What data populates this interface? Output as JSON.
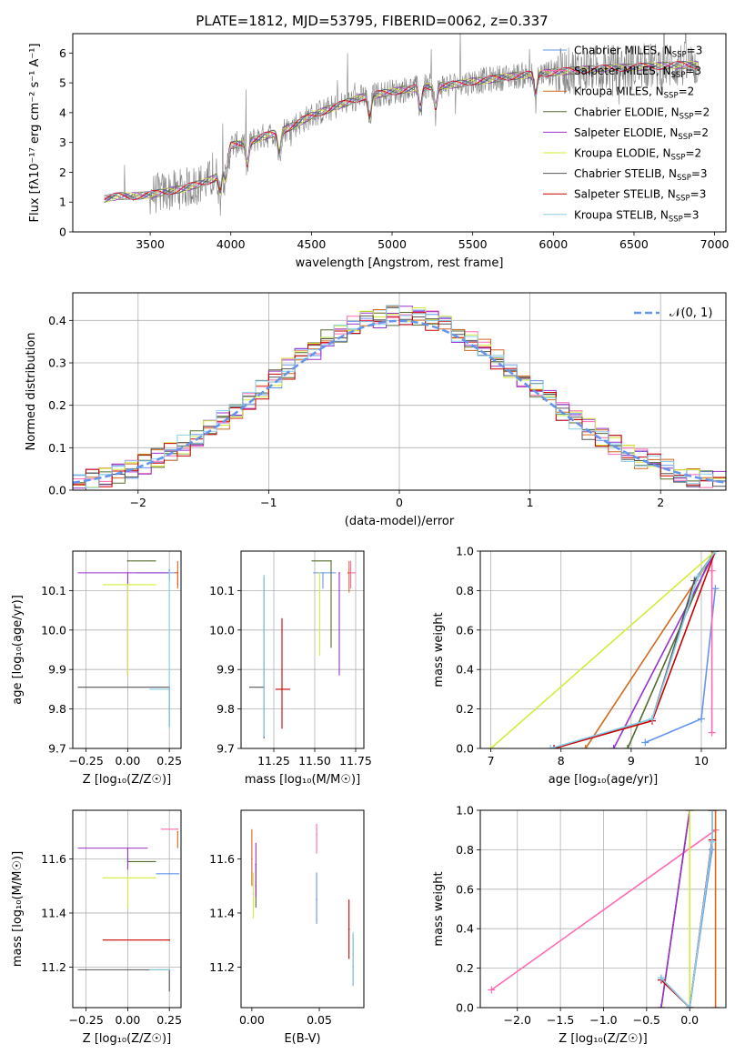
{
  "chart_data": [
    {
      "id": "spectrum",
      "type": "line",
      "title": "PLATE=1812, MJD=53795, FIBERID=0062, z=0.337",
      "xlabel": "wavelength [Angstrom, rest frame]",
      "ylabel": "Flux [fλ10⁻¹⁷ erg cm⁻² s⁻¹ A⁻¹]",
      "xlim": [
        3020,
        7070
      ],
      "ylim": [
        0,
        6.65
      ],
      "xticks": [
        3500,
        4000,
        4500,
        5000,
        5500,
        6000,
        6500,
        7000
      ],
      "yticks": [
        0,
        1,
        2,
        3,
        4,
        5,
        6
      ],
      "grid": false,
      "legend_position": "top-right",
      "continuum": {
        "x": [
          3210,
          3300,
          3400,
          3500,
          3600,
          3700,
          3800,
          3900,
          3950,
          4000,
          4100,
          4200,
          4300,
          4400,
          4500,
          4600,
          4700,
          4800,
          4900,
          5000,
          5100,
          5200,
          5300,
          5400,
          5500,
          5600,
          5700,
          5800,
          5900,
          6000,
          6200,
          6400,
          6600,
          6800
        ],
        "y": [
          1.1,
          1.2,
          1.2,
          1.25,
          1.35,
          1.45,
          1.6,
          1.8,
          2.2,
          2.9,
          3.0,
          3.2,
          3.35,
          3.6,
          3.9,
          4.1,
          4.3,
          4.5,
          4.6,
          4.7,
          4.8,
          4.85,
          4.9,
          4.95,
          5.05,
          5.1,
          5.2,
          5.25,
          5.3,
          5.35,
          5.45,
          5.5,
          5.55,
          5.6
        ]
      },
      "series": [
        {
          "name": "Chabrier MILES, N_SSP=3",
          "label": "Chabrier MILES, N",
          "sub": "SSP",
          "suffix": "=3",
          "color": "#6495ed"
        },
        {
          "name": "Salpeter MILES, N_SSP=3",
          "label": "Salpeter MILES, N",
          "sub": "SSP",
          "suffix": "=3",
          "color": "#ff69b4"
        },
        {
          "name": "Kroupa MILES, N_SSP=2",
          "label": "Kroupa MILES, N",
          "sub": "SSP",
          "suffix": "=2",
          "color": "#d2691e"
        },
        {
          "name": "Chabrier ELODIE, N_SSP=2",
          "label": "Chabrier ELODIE, N",
          "sub": "SSP",
          "suffix": "=2",
          "color": "#556b2f"
        },
        {
          "name": "Salpeter ELODIE, N_SSP=2",
          "label": "Salpeter ELODIE, N",
          "sub": "SSP",
          "suffix": "=2",
          "color": "#9932cc"
        },
        {
          "name": "Kroupa ELODIE, N_SSP=2",
          "label": "Kroupa ELODIE, N",
          "sub": "SSP",
          "suffix": "=2",
          "color": "#d4ec3a"
        },
        {
          "name": "Chabrier STELIB, N_SSP=3",
          "label": "Chabrier STELIB, N",
          "sub": "SSP",
          "suffix": "=3",
          "color": "#555555"
        },
        {
          "name": "Salpeter STELIB, N_SSP=3",
          "label": "Salpeter STELIB, N",
          "sub": "SSP",
          "suffix": "=3",
          "color": "#cc0000"
        },
        {
          "name": "Kroupa STELIB, N_SSP=3",
          "label": "Kroupa STELIB, N",
          "sub": "SSP",
          "suffix": "=3",
          "color": "#87ceeb"
        }
      ],
      "data_color": "#808080"
    },
    {
      "id": "residuals",
      "type": "line",
      "title": "",
      "xlabel": "(data-model)/error",
      "ylabel": "Normed distribution",
      "xlim": [
        -2.5,
        2.5
      ],
      "ylim": [
        0,
        0.465
      ],
      "xticks": [
        -2,
        -1,
        0,
        1,
        2
      ],
      "yticks": [
        0.0,
        0.1,
        0.2,
        0.3,
        0.4
      ],
      "grid": true,
      "legend_position": "top-right",
      "normal": {
        "name": "𝒩(0, 1)",
        "color": "#6495ed"
      }
    },
    {
      "id": "age-vs-Z",
      "type": "scatter",
      "xlabel": "Z [log₁₀(Z/Z☉)]",
      "ylabel": "age [log₁₀(age/yr)]",
      "xlim": [
        -0.33,
        0.32
      ],
      "ylim": [
        9.7,
        10.2
      ],
      "xticks": [
        -0.25,
        0.0,
        0.25
      ],
      "yticks": [
        9.7,
        9.8,
        9.9,
        10.0,
        10.1
      ],
      "grid": true,
      "points": [
        {
          "series": "Chabrier MILES",
          "x": 0.25,
          "y": 10.145,
          "xerr": [
            0.2,
            0.03
          ],
          "yerr": [
            0.02,
            0.01
          ]
        },
        {
          "series": "Salpeter MILES",
          "x": 0.3,
          "y": 10.145,
          "xerr": [
            0.02,
            0.0
          ],
          "yerr": [
            0.03,
            0.0
          ]
        },
        {
          "series": "Kroupa MILES",
          "x": 0.3,
          "y": 10.145,
          "xerr": [
            0.02,
            0.0
          ],
          "yerr": [
            0.04,
            0.03
          ]
        },
        {
          "series": "Chabrier ELODIE",
          "x": 0.0,
          "y": 10.175,
          "xerr": [
            0.0,
            0.17
          ],
          "yerr": [
            0.0,
            0.0
          ]
        },
        {
          "series": "Salpeter ELODIE",
          "x": 0.0,
          "y": 10.145,
          "xerr": [
            0.3,
            0.25
          ],
          "yerr": [
            0.26,
            0.0
          ]
        },
        {
          "series": "Kroupa ELODIE",
          "x": 0.0,
          "y": 10.115,
          "xerr": [
            0.15,
            0.17
          ],
          "yerr": [
            0.23,
            0.0
          ]
        },
        {
          "series": "Chabrier STELIB",
          "x": 0.25,
          "y": 9.855,
          "xerr": [
            0.55,
            0.0
          ],
          "yerr": [
            0.1,
            0.0
          ]
        },
        {
          "series": "Salpeter STELIB",
          "x": 0.25,
          "y": 9.855,
          "xerr": [
            0.0,
            0.0
          ],
          "yerr": [
            0.0,
            0.0
          ]
        },
        {
          "series": "Kroupa STELIB",
          "x": 0.25,
          "y": 9.85,
          "xerr": [
            0.12,
            0.0
          ],
          "yerr": [
            0.1,
            0.3
          ]
        }
      ]
    },
    {
      "id": "age-vs-mass",
      "type": "scatter",
      "xlabel": "mass [log₁₀(M/M☉)]",
      "ylabel": "",
      "xlim": [
        11.05,
        11.8
      ],
      "ylim": [
        9.7,
        10.2
      ],
      "xticks": [
        11.25,
        11.5,
        11.75
      ],
      "yticks": [
        9.7,
        9.8,
        9.9,
        10.0,
        10.1
      ],
      "grid": true,
      "points": [
        {
          "series": "Chabrier MILES",
          "x": 11.55,
          "y": 10.145,
          "xerr": [
            0.06,
            0.08
          ],
          "yerr": [
            0.04,
            0.0
          ]
        },
        {
          "series": "Salpeter MILES",
          "x": 11.72,
          "y": 10.145,
          "xerr": [
            0.02,
            0.03
          ],
          "yerr": [
            0.04,
            0.03
          ]
        },
        {
          "series": "Kroupa MILES",
          "x": 11.71,
          "y": 10.145,
          "xerr": [
            0.01,
            0.0
          ],
          "yerr": [
            0.05,
            0.03
          ]
        },
        {
          "series": "Chabrier ELODIE",
          "x": 11.6,
          "y": 10.175,
          "xerr": [
            0.12,
            0.0
          ],
          "yerr": [
            0.22,
            0.0
          ]
        },
        {
          "series": "Salpeter ELODIE",
          "x": 11.65,
          "y": 10.145,
          "xerr": [
            0.0,
            0.0
          ],
          "yerr": [
            0.26,
            0.0
          ]
        },
        {
          "series": "Kroupa ELODIE",
          "x": 11.53,
          "y": 10.145,
          "xerr": [
            0.0,
            0.0
          ],
          "yerr": [
            0.21,
            0.0
          ]
        },
        {
          "series": "Chabrier STELIB",
          "x": 11.19,
          "y": 9.855,
          "xerr": [
            0.09,
            0.0
          ],
          "yerr": [
            0.13,
            0.28
          ]
        },
        {
          "series": "Salpeter STELIB",
          "x": 11.3,
          "y": 9.85,
          "xerr": [
            0.04,
            0.05
          ],
          "yerr": [
            0.1,
            0.18
          ]
        },
        {
          "series": "Kroupa STELIB",
          "x": 11.19,
          "y": 9.85,
          "xerr": [
            0.0,
            0.0
          ],
          "yerr": [
            0.12,
            0.29
          ]
        }
      ]
    },
    {
      "id": "age-weights",
      "type": "line",
      "xlabel": "age [log₁₀(age/yr)]",
      "ylabel": "mass weight",
      "xlim": [
        6.85,
        10.35
      ],
      "ylim": [
        0,
        1
      ],
      "xticks": [
        7,
        8,
        9,
        10
      ],
      "yticks": [
        0.0,
        0.2,
        0.4,
        0.6,
        0.8,
        1.0
      ],
      "grid": true,
      "series": [
        {
          "name": "Chabrier MILES",
          "x": [
            9.2,
            10.0,
            10.2
          ],
          "y": [
            0.03,
            0.15,
            0.81
          ]
        },
        {
          "name": "Salpeter MILES",
          "x": [
            10.15,
            10.15,
            10.15
          ],
          "y": [
            0.08,
            0.9,
            1.0
          ]
        },
        {
          "name": "Kroupa MILES",
          "x": [
            8.35,
            10.2
          ],
          "y": [
            0.0,
            1.0
          ]
        },
        {
          "name": "Chabrier ELODIE",
          "x": [
            8.95,
            10.17
          ],
          "y": [
            0.0,
            1.0
          ]
        },
        {
          "name": "Salpeter ELODIE",
          "x": [
            8.75,
            10.2
          ],
          "y": [
            0.0,
            1.0
          ]
        },
        {
          "name": "Kroupa ELODIE",
          "x": [
            7.0,
            10.2
          ],
          "y": [
            0.0,
            1.0
          ]
        },
        {
          "name": "Chabrier STELIB",
          "x": [
            7.9,
            9.3,
            9.9,
            10.2
          ],
          "y": [
            0.0,
            0.15,
            0.85,
            1.0
          ]
        },
        {
          "name": "Salpeter STELIB",
          "x": [
            7.9,
            9.3,
            10.2
          ],
          "y": [
            0.0,
            0.14,
            1.0
          ]
        },
        {
          "name": "Kroupa STELIB",
          "x": [
            7.85,
            9.3,
            9.95,
            10.2
          ],
          "y": [
            0.0,
            0.15,
            0.87,
            1.0
          ]
        }
      ]
    },
    {
      "id": "mass-vs-Z",
      "type": "scatter",
      "xlabel": "Z [log₁₀(Z/Z☉)]",
      "ylabel": "mass [log₁₀(M/M☉)]",
      "xlim": [
        -0.33,
        0.32
      ],
      "ylim": [
        11.05,
        11.78
      ],
      "xticks": [
        -0.25,
        0.0,
        0.25
      ],
      "yticks": [
        11.2,
        11.4,
        11.6
      ],
      "grid": true,
      "points": [
        {
          "series": "Chabrier MILES",
          "x": 0.25,
          "y": 11.545,
          "xerr": [
            0.08,
            0.06
          ],
          "yerr": [
            0.0,
            0.0
          ]
        },
        {
          "series": "Salpeter MILES",
          "x": 0.3,
          "y": 11.71,
          "xerr": [
            0.1,
            0.0
          ],
          "yerr": [
            0.0,
            0.0
          ]
        },
        {
          "series": "Kroupa MILES",
          "x": 0.3,
          "y": 11.7,
          "xerr": [
            0.0,
            0.0
          ],
          "yerr": [
            0.06,
            0.0
          ]
        },
        {
          "series": "Chabrier ELODIE",
          "x": 0.0,
          "y": 11.59,
          "xerr": [
            0.0,
            0.17
          ],
          "yerr": [
            0.0,
            0.0
          ]
        },
        {
          "series": "Salpeter ELODIE",
          "x": 0.0,
          "y": 11.64,
          "xerr": [
            0.3,
            0.12
          ],
          "yerr": [
            0.08,
            0.0
          ]
        },
        {
          "series": "Kroupa ELODIE",
          "x": 0.0,
          "y": 11.53,
          "xerr": [
            0.15,
            0.17
          ],
          "yerr": [
            0.11,
            0.0
          ]
        },
        {
          "series": "Chabrier STELIB",
          "x": 0.25,
          "y": 11.19,
          "xerr": [
            0.55,
            0.0
          ],
          "yerr": [
            0.08,
            0.0
          ]
        },
        {
          "series": "Salpeter STELIB",
          "x": 0.25,
          "y": 11.3,
          "xerr": [
            0.4,
            0.0
          ],
          "yerr": [
            0.0,
            0.0
          ]
        },
        {
          "series": "Kroupa STELIB",
          "x": 0.25,
          "y": 11.19,
          "xerr": [
            0.12,
            0.0
          ],
          "yerr": [
            0.0,
            0.0
          ]
        }
      ]
    },
    {
      "id": "mass-vs-ebv",
      "type": "scatter",
      "xlabel": "E(B-V)",
      "ylabel": "",
      "xlim": [
        -0.008,
        0.083
      ],
      "ylim": [
        11.05,
        11.78
      ],
      "xticks": [
        0.0,
        0.05
      ],
      "yticks": [
        11.2,
        11.4,
        11.6
      ],
      "grid": false,
      "points": [
        {
          "series": "Chabrier MILES",
          "x": 0.048,
          "y": 11.45,
          "yerr": [
            0.09,
            0.1
          ]
        },
        {
          "series": "Salpeter MILES",
          "x": 0.048,
          "y": 11.69,
          "yerr": [
            0.07,
            0.04
          ]
        },
        {
          "series": "Kroupa MILES",
          "x": 0.0,
          "y": 11.6,
          "yerr": [
            0.1,
            0.11
          ]
        },
        {
          "series": "Chabrier ELODIE",
          "x": 0.003,
          "y": 11.5,
          "yerr": [
            0.08,
            0.08
          ]
        },
        {
          "series": "Salpeter ELODIE",
          "x": 0.003,
          "y": 11.58,
          "yerr": [
            0.12,
            0.08
          ]
        },
        {
          "series": "Kroupa ELODIE",
          "x": 0.001,
          "y": 11.47,
          "yerr": [
            0.09,
            0.08
          ]
        },
        {
          "series": "Chabrier STELIB",
          "x": 0.075,
          "y": 11.2,
          "yerr": [
            0.07,
            0.12
          ]
        },
        {
          "series": "Salpeter STELIB",
          "x": 0.072,
          "y": 11.34,
          "yerr": [
            0.11,
            0.11
          ]
        },
        {
          "series": "Kroupa STELIB",
          "x": 0.075,
          "y": 11.2,
          "yerr": [
            0.07,
            0.13
          ]
        }
      ]
    },
    {
      "id": "Z-weights",
      "type": "line",
      "xlabel": "Z [log₁₀(Z/Z☉)]",
      "ylabel": "mass weight",
      "xlim": [
        -2.43,
        0.42
      ],
      "ylim": [
        0,
        1
      ],
      "xticks": [
        -2.0,
        -1.5,
        -1.0,
        -0.5,
        0.0
      ],
      "yticks": [
        0.0,
        0.2,
        0.4,
        0.6,
        0.8,
        1.0
      ],
      "grid": true,
      "series": [
        {
          "name": "Chabrier MILES",
          "x": [
            -0.33,
            0.0,
            0.26,
            0.26
          ],
          "y": [
            0.15,
            0.0,
            0.8,
            1.0
          ]
        },
        {
          "name": "Salpeter MILES",
          "x": [
            -2.3,
            0.3
          ],
          "y": [
            0.09,
            0.9
          ]
        },
        {
          "name": "Kroupa MILES",
          "x": [
            0.3,
            0.3
          ],
          "y": [
            0.0,
            1.0
          ]
        },
        {
          "name": "Chabrier ELODIE",
          "x": [
            -0.33,
            0.0
          ],
          "y": [
            0.0,
            1.0
          ]
        },
        {
          "name": "Salpeter ELODIE",
          "x": [
            -0.33,
            0.0
          ],
          "y": [
            0.0,
            1.0
          ]
        },
        {
          "name": "Kroupa ELODIE",
          "x": [
            0.0,
            0.0
          ],
          "y": [
            0.0,
            1.0
          ]
        },
        {
          "name": "Chabrier STELIB",
          "x": [
            -0.33,
            0.0,
            0.26,
            0.26
          ],
          "y": [
            0.15,
            0.0,
            0.85,
            1.0
          ]
        },
        {
          "name": "Salpeter STELIB",
          "x": [
            -0.33,
            0.0,
            0.26,
            0.26
          ],
          "y": [
            0.14,
            0.0,
            0.85,
            1.0
          ]
        },
        {
          "name": "Kroupa STELIB",
          "x": [
            -0.33,
            0.0,
            0.26,
            0.26
          ],
          "y": [
            0.15,
            0.0,
            0.84,
            1.0
          ]
        }
      ]
    }
  ]
}
